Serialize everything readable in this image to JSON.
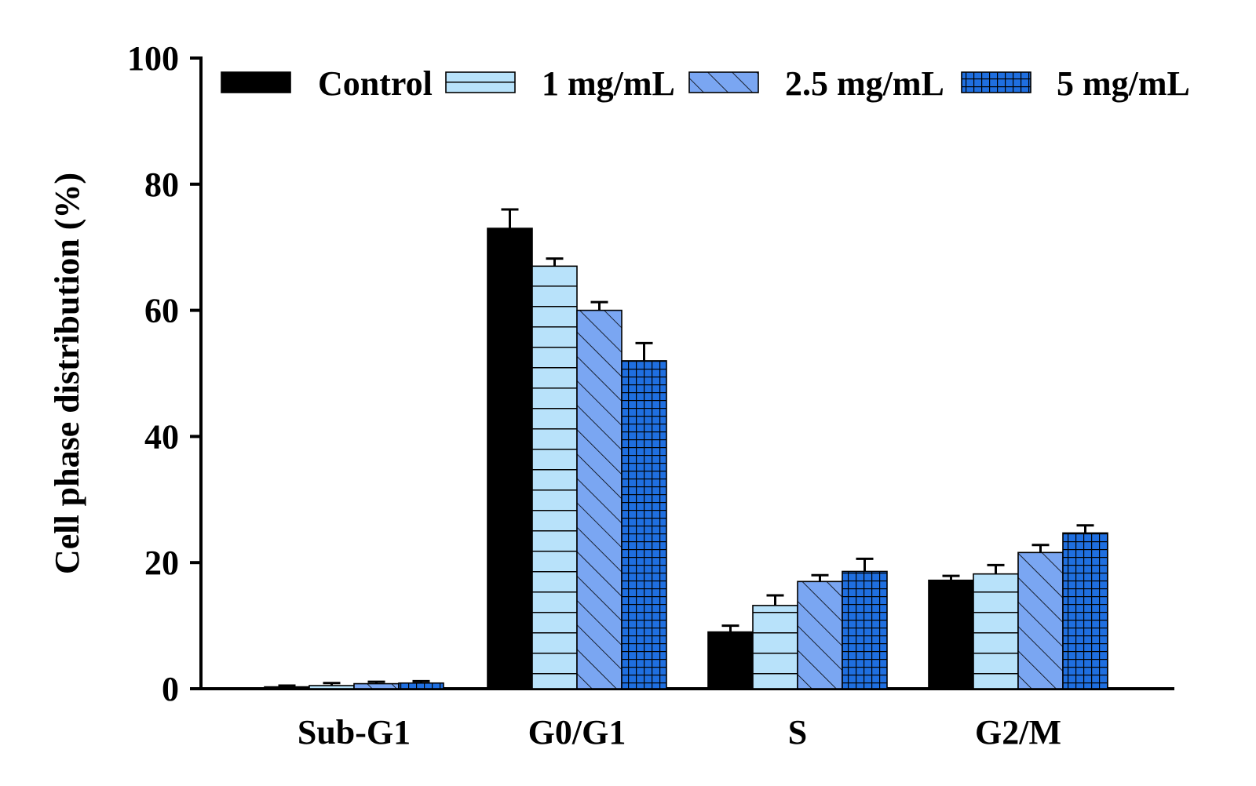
{
  "chart_data": {
    "type": "bar",
    "title": "",
    "xlabel": "",
    "ylabel": "Cell phase distribution (%)",
    "ylim": [
      0,
      100
    ],
    "yticks": [
      0,
      20,
      40,
      60,
      80,
      100
    ],
    "grid": false,
    "legend_position": "top",
    "categories": [
      "Sub-G1",
      "G0/G1",
      "S",
      "G2/M"
    ],
    "series": [
      {
        "name": "Control",
        "values": [
          0.3,
          73.0,
          9.0,
          17.2
        ],
        "errors": [
          0.2,
          3.0,
          1.0,
          0.7
        ],
        "fill": "#000000",
        "pattern": "solid"
      },
      {
        "name": "1 mg/mL",
        "values": [
          0.5,
          67.0,
          13.2,
          18.2
        ],
        "errors": [
          0.4,
          1.2,
          1.6,
          1.4
        ],
        "fill": "#b8e2fa",
        "pattern": "horizontal-lines"
      },
      {
        "name": "2.5 mg/mL",
        "values": [
          0.8,
          60.0,
          17.0,
          21.6
        ],
        "errors": [
          0.3,
          1.3,
          1.0,
          1.2
        ],
        "fill": "#7aa6f2",
        "pattern": "diagonal-lines"
      },
      {
        "name": "5 mg/mL",
        "values": [
          0.9,
          52.0,
          18.6,
          24.7
        ],
        "errors": [
          0.3,
          2.8,
          2.0,
          1.2
        ],
        "fill": "#1f6fe0",
        "pattern": "grid"
      }
    ]
  }
}
